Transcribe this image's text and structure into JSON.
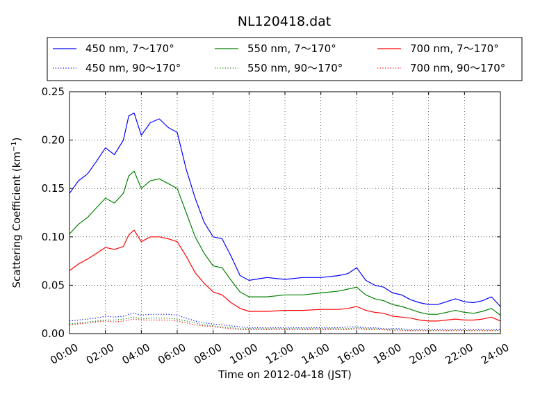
{
  "chart_data": {
    "type": "line",
    "title": "NL120418.dat",
    "xlabel": "Time on 2012-04-18 (JST)",
    "ylabel": "Scattering Coefficient (km",
    "ylabel_sup": "−1",
    "ylabel_end": ")",
    "xlim": [
      0,
      24
    ],
    "ylim": [
      0,
      0.25
    ],
    "x_ticks": [
      0,
      2,
      4,
      6,
      8,
      10,
      12,
      14,
      16,
      18,
      20,
      22,
      24
    ],
    "x_tick_labels": [
      "00:00",
      "02:00",
      "04:00",
      "06:00",
      "08:00",
      "10:00",
      "12:00",
      "14:00",
      "16:00",
      "18:00",
      "20:00",
      "22:00",
      "24:00"
    ],
    "y_ticks": [
      0,
      0.05,
      0.1,
      0.15,
      0.2,
      0.25
    ],
    "y_tick_labels": [
      "0.00",
      "0.05",
      "0.10",
      "0.15",
      "0.20",
      "0.25"
    ],
    "grid": true,
    "legend_position": "top",
    "x_hours": [
      0,
      0.5,
      1,
      1.5,
      2,
      2.5,
      3,
      3.3,
      3.6,
      4,
      4.5,
      5,
      5.5,
      6,
      6.5,
      7,
      7.5,
      8,
      8.5,
      9,
      9.5,
      10,
      11,
      12,
      13,
      14,
      15,
      15.5,
      16,
      16.5,
      17,
      17.5,
      18,
      18.5,
      19,
      19.5,
      20,
      20.5,
      21,
      21.5,
      22,
      22.5,
      23,
      23.5,
      24
    ],
    "series": [
      {
        "name": "450 nm, 7～170°",
        "color": "#0000ff",
        "style": "solid",
        "values": [
          0.145,
          0.158,
          0.165,
          0.178,
          0.192,
          0.185,
          0.2,
          0.225,
          0.228,
          0.205,
          0.218,
          0.222,
          0.213,
          0.208,
          0.17,
          0.14,
          0.115,
          0.1,
          0.098,
          0.08,
          0.06,
          0.055,
          0.058,
          0.056,
          0.058,
          0.058,
          0.06,
          0.062,
          0.068,
          0.055,
          0.05,
          0.048,
          0.042,
          0.04,
          0.035,
          0.032,
          0.03,
          0.03,
          0.033,
          0.036,
          0.033,
          0.032,
          0.034,
          0.038,
          0.028
        ]
      },
      {
        "name": "450 nm, 90～170°",
        "color": "#0000ff",
        "style": "dotted",
        "values": [
          0.013,
          0.014,
          0.015,
          0.016,
          0.018,
          0.017,
          0.018,
          0.02,
          0.021,
          0.019,
          0.02,
          0.02,
          0.02,
          0.019,
          0.016,
          0.013,
          0.011,
          0.01,
          0.009,
          0.008,
          0.007,
          0.006,
          0.006,
          0.006,
          0.006,
          0.006,
          0.006,
          0.007,
          0.007,
          0.006,
          0.006,
          0.005,
          0.005,
          0.005,
          0.004,
          0.004,
          0.004,
          0.004,
          0.004,
          0.004,
          0.004,
          0.004,
          0.004,
          0.004,
          0.004
        ]
      },
      {
        "name": "550 nm, 7～170°",
        "color": "#008000",
        "style": "solid",
        "values": [
          0.103,
          0.113,
          0.12,
          0.13,
          0.14,
          0.135,
          0.145,
          0.163,
          0.168,
          0.15,
          0.158,
          0.16,
          0.155,
          0.15,
          0.125,
          0.1,
          0.083,
          0.07,
          0.068,
          0.055,
          0.043,
          0.038,
          0.038,
          0.04,
          0.04,
          0.042,
          0.044,
          0.046,
          0.048,
          0.04,
          0.036,
          0.034,
          0.03,
          0.028,
          0.025,
          0.022,
          0.02,
          0.02,
          0.022,
          0.024,
          0.022,
          0.021,
          0.023,
          0.026,
          0.019
        ]
      },
      {
        "name": "550 nm, 90～170°",
        "color": "#008000",
        "style": "dotted",
        "values": [
          0.01,
          0.011,
          0.012,
          0.013,
          0.014,
          0.014,
          0.015,
          0.016,
          0.017,
          0.015,
          0.016,
          0.016,
          0.016,
          0.015,
          0.013,
          0.011,
          0.009,
          0.008,
          0.007,
          0.006,
          0.005,
          0.005,
          0.005,
          0.005,
          0.005,
          0.005,
          0.005,
          0.005,
          0.006,
          0.005,
          0.005,
          0.004,
          0.004,
          0.004,
          0.003,
          0.003,
          0.003,
          0.003,
          0.003,
          0.003,
          0.003,
          0.003,
          0.003,
          0.003,
          0.003
        ]
      },
      {
        "name": "700 nm, 7～170°",
        "color": "#ff0000",
        "style": "solid",
        "values": [
          0.065,
          0.072,
          0.077,
          0.083,
          0.089,
          0.087,
          0.09,
          0.102,
          0.107,
          0.095,
          0.1,
          0.1,
          0.098,
          0.095,
          0.08,
          0.063,
          0.052,
          0.043,
          0.04,
          0.032,
          0.026,
          0.023,
          0.023,
          0.024,
          0.024,
          0.025,
          0.025,
          0.026,
          0.028,
          0.024,
          0.022,
          0.021,
          0.018,
          0.017,
          0.016,
          0.014,
          0.013,
          0.013,
          0.014,
          0.015,
          0.014,
          0.014,
          0.015,
          0.017,
          0.013
        ]
      },
      {
        "name": "700 nm, 90～170°",
        "color": "#ff0000",
        "style": "dotted",
        "values": [
          0.009,
          0.01,
          0.011,
          0.012,
          0.013,
          0.012,
          0.013,
          0.014,
          0.015,
          0.014,
          0.014,
          0.014,
          0.014,
          0.013,
          0.011,
          0.009,
          0.008,
          0.007,
          0.006,
          0.005,
          0.004,
          0.004,
          0.004,
          0.004,
          0.004,
          0.004,
          0.004,
          0.004,
          0.005,
          0.004,
          0.004,
          0.004,
          0.003,
          0.003,
          0.003,
          0.003,
          0.003,
          0.003,
          0.003,
          0.003,
          0.003,
          0.003,
          0.003,
          0.003,
          0.003
        ]
      }
    ]
  }
}
